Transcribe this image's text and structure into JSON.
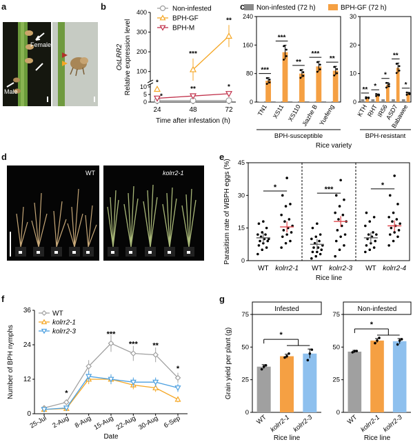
{
  "panel_labels": {
    "a": "a",
    "b": "b",
    "c": "c",
    "d": "d",
    "e": "e",
    "f": "f",
    "g": "g"
  },
  "panel_a": {
    "labels": {
      "female": "Female",
      "male": "Male"
    }
  },
  "panel_d": {
    "labels": {
      "wt": "WT",
      "mutant": "kolrr2-1"
    }
  },
  "chart_data": [
    {
      "id": "b",
      "type": "line",
      "ylabel_gene": "OsLRR2",
      "ylabel": "Relative expression level",
      "xlabel": "Time after infestation (h)",
      "x": [
        24,
        48,
        72
      ],
      "x_ticks": [
        "24",
        "48",
        "72"
      ],
      "y_ticks_low": [
        "0",
        "5",
        "10"
      ],
      "y_ticks_high": [
        "100",
        "200",
        "300",
        "400"
      ],
      "series": [
        {
          "name": "Non-infested",
          "color": "#9e9e9e",
          "marker": "circle",
          "values": [
            1.0,
            1.0,
            1.0
          ]
        },
        {
          "name": "BPH-GF",
          "color": "#f5a623",
          "marker": "triangle-up",
          "values": [
            8.5,
            110,
            280
          ]
        },
        {
          "name": "BPH-M",
          "color": "#c0304a",
          "marker": "triangle-down",
          "values": [
            2.5,
            4.0,
            5.5
          ]
        }
      ],
      "annotations": [
        {
          "x": 24,
          "text": "*",
          "series": "BPH-GF"
        },
        {
          "x": 24,
          "text": "*",
          "series": "BPH-M"
        },
        {
          "x": 48,
          "text": "***",
          "series": "BPH-GF"
        },
        {
          "x": 48,
          "text": "**",
          "series": "BPH-M"
        },
        {
          "x": 72,
          "text": "**",
          "series": "BPH-GF"
        },
        {
          "x": 72,
          "text": "*",
          "series": "BPH-M"
        }
      ]
    },
    {
      "id": "c",
      "type": "bar",
      "ylabel": "",
      "xlabel": "Rice variety",
      "legend": [
        {
          "name": "Non-infested (72 h)",
          "color": "#8a8a8a"
        },
        {
          "name": "BPH-GF (72 h)",
          "color": "#f5a043"
        }
      ],
      "groups": [
        {
          "name": "BPH-susceptible",
          "ylim": [
            0,
            240
          ],
          "y_ticks": [
            "0",
            "80",
            "160",
            "240"
          ],
          "categories": [
            "TN1",
            "XS11",
            "XS110",
            "Jiazhe B",
            "Yuefeng"
          ],
          "non_infested": [
            1,
            1,
            1,
            1,
            1
          ],
          "bph_gf": [
            60,
            140,
            80,
            100,
            88
          ],
          "sig": [
            "***",
            "***",
            "**",
            "***",
            "**"
          ]
        },
        {
          "name": "BPH-resistant",
          "ylim": [
            0,
            30
          ],
          "y_ticks": [
            "0",
            "10",
            "20",
            "30"
          ],
          "categories": [
            "KTH",
            "RHT",
            "IR56",
            "ASD7",
            "Babawee"
          ],
          "non_infested": [
            1,
            1,
            1,
            1,
            1
          ],
          "bph_gf": [
            1.5,
            2.5,
            6,
            12,
            3
          ],
          "sig": [
            "**",
            "*",
            "*",
            "**",
            "*"
          ]
        }
      ]
    },
    {
      "id": "e",
      "type": "scatter",
      "ylabel": "Parasitism rate of WBPH eggs (%)",
      "xlabel": "Rice line",
      "ylim": [
        0,
        45
      ],
      "y_ticks": [
        "0",
        "15",
        "30",
        "45"
      ],
      "groups": [
        {
          "pair": [
            {
              "name": "WT",
              "mean": 10.5,
              "points": [
                3,
                5,
                6,
                7,
                8,
                9,
                9,
                10,
                10,
                11,
                12,
                12,
                13,
                15,
                17,
                18
              ]
            },
            {
              "name": "kolrr2-1",
              "mean": 15.5,
              "points": [
                6,
                8,
                9,
                11,
                12,
                13,
                14,
                15,
                16,
                18,
                19,
                21,
                25,
                26,
                30,
                38
              ]
            }
          ],
          "sig": "*"
        },
        {
          "pair": [
            {
              "name": "WT",
              "mean": 7.5,
              "points": [
                1,
                2,
                3,
                4,
                4,
                5,
                6,
                6,
                7,
                8,
                9,
                10,
                11,
                12,
                15,
                17
              ]
            },
            {
              "name": "kolrr2-3",
              "mean": 18,
              "points": [
                2,
                5,
                7,
                9,
                11,
                12,
                14,
                16,
                18,
                19,
                21,
                22,
                25,
                28,
                30,
                37
              ]
            }
          ],
          "sig": "***"
        },
        {
          "pair": [
            {
              "name": "WT",
              "mean": 10.5,
              "points": [
                4,
                5,
                6,
                7,
                8,
                9,
                10,
                11,
                12,
                12,
                13,
                16,
                18,
                20,
                22
              ]
            },
            {
              "name": "kolrr2-4",
              "mean": 16,
              "points": [
                7,
                9,
                11,
                12,
                13,
                14,
                15,
                16,
                17,
                18,
                19,
                20,
                22,
                26,
                30,
                39
              ]
            }
          ],
          "sig": "*"
        }
      ]
    },
    {
      "id": "f",
      "type": "line",
      "ylabel": "Number of BPH nymphs",
      "xlabel": "Date",
      "categories": [
        "25-Jul",
        "2-Aug",
        "8-Aug",
        "15-Aug",
        "22-Aug",
        "30-Aug",
        "6-Sep"
      ],
      "ylim": [
        0,
        36
      ],
      "y_ticks": [
        "0",
        "12",
        "24",
        "36"
      ],
      "series": [
        {
          "name": "WT",
          "color": "#a0a0a0",
          "marker": "diamond",
          "values": [
            2,
            4,
            16.5,
            24.5,
            21,
            20.5,
            12.5
          ]
        },
        {
          "name": "kolrr2-1",
          "color": "#f5a623",
          "marker": "triangle-up",
          "values": [
            1.5,
            1.8,
            12,
            12,
            10,
            9,
            5
          ]
        },
        {
          "name": "kolrr2-3",
          "color": "#4a9fe0",
          "marker": "triangle-down",
          "values": [
            1.5,
            2,
            13,
            12,
            11,
            11,
            9
          ]
        }
      ],
      "sig": [
        "",
        "*",
        "",
        "***",
        "***",
        "**",
        "*"
      ]
    },
    {
      "id": "g",
      "type": "bar",
      "ylabel": "Grain yield per plant (g)",
      "xlabel": "Rice line",
      "ylim": [
        0,
        75
      ],
      "y_ticks": [
        "0",
        "25",
        "50",
        "75"
      ],
      "colors": [
        "#a0a0a0",
        "#f5a043",
        "#8ec0ee"
      ],
      "panels": [
        {
          "title": "Infested",
          "categories": [
            "WT",
            "kolrr2-1",
            "kolrr2-3"
          ],
          "values": [
            35,
            43,
            45
          ],
          "errors": [
            1.5,
            1.5,
            3.5
          ],
          "points": [
            [
              33,
              35,
              36
            ],
            [
              42,
              43,
              45
            ],
            [
              40,
              45,
              48
            ]
          ],
          "sig": "*"
        },
        {
          "title": "Non-infested",
          "categories": [
            "WT",
            "kolrr2-1",
            "kolrr2-3"
          ],
          "values": [
            46.5,
            55,
            54.5
          ],
          "errors": [
            1,
            1.5,
            2
          ],
          "points": [
            [
              46,
              47,
              47
            ],
            [
              53,
              55,
              57
            ],
            [
              52,
              55,
              56
            ]
          ],
          "sig": "*"
        }
      ]
    }
  ]
}
